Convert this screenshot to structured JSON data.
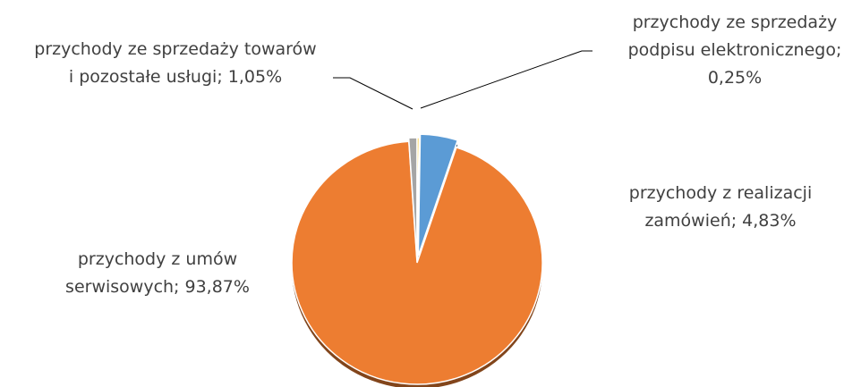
{
  "chart_data": {
    "type": "pie",
    "slices": [
      {
        "name": "przychody ze sprzedaży podpisu elektronicznego",
        "value": 0.25,
        "label_lines": [
          "przychody ze sprzedaży",
          "podpisu elektronicznego;",
          "0,25%"
        ],
        "color": "#ffc000"
      },
      {
        "name": "przychody z realizacji zamówień",
        "value": 4.83,
        "label_lines": [
          "przychody z realizacji",
          "zamówień; 4,83%"
        ],
        "color": "#5b9bd5"
      },
      {
        "name": "przychody z umów serwisowych",
        "value": 93.87,
        "label_lines": [
          "przychody z umów",
          "serwisowych; 93,87%"
        ],
        "color": "#ed7d31"
      },
      {
        "name": "przychody ze sprzedaży towarów i pozostałe usługi",
        "value": 1.05,
        "label_lines": [
          "przychody ze sprzedaży towarów",
          "i pozostałe usługi; 1,05%"
        ],
        "color": "#a5a5a5"
      }
    ]
  }
}
